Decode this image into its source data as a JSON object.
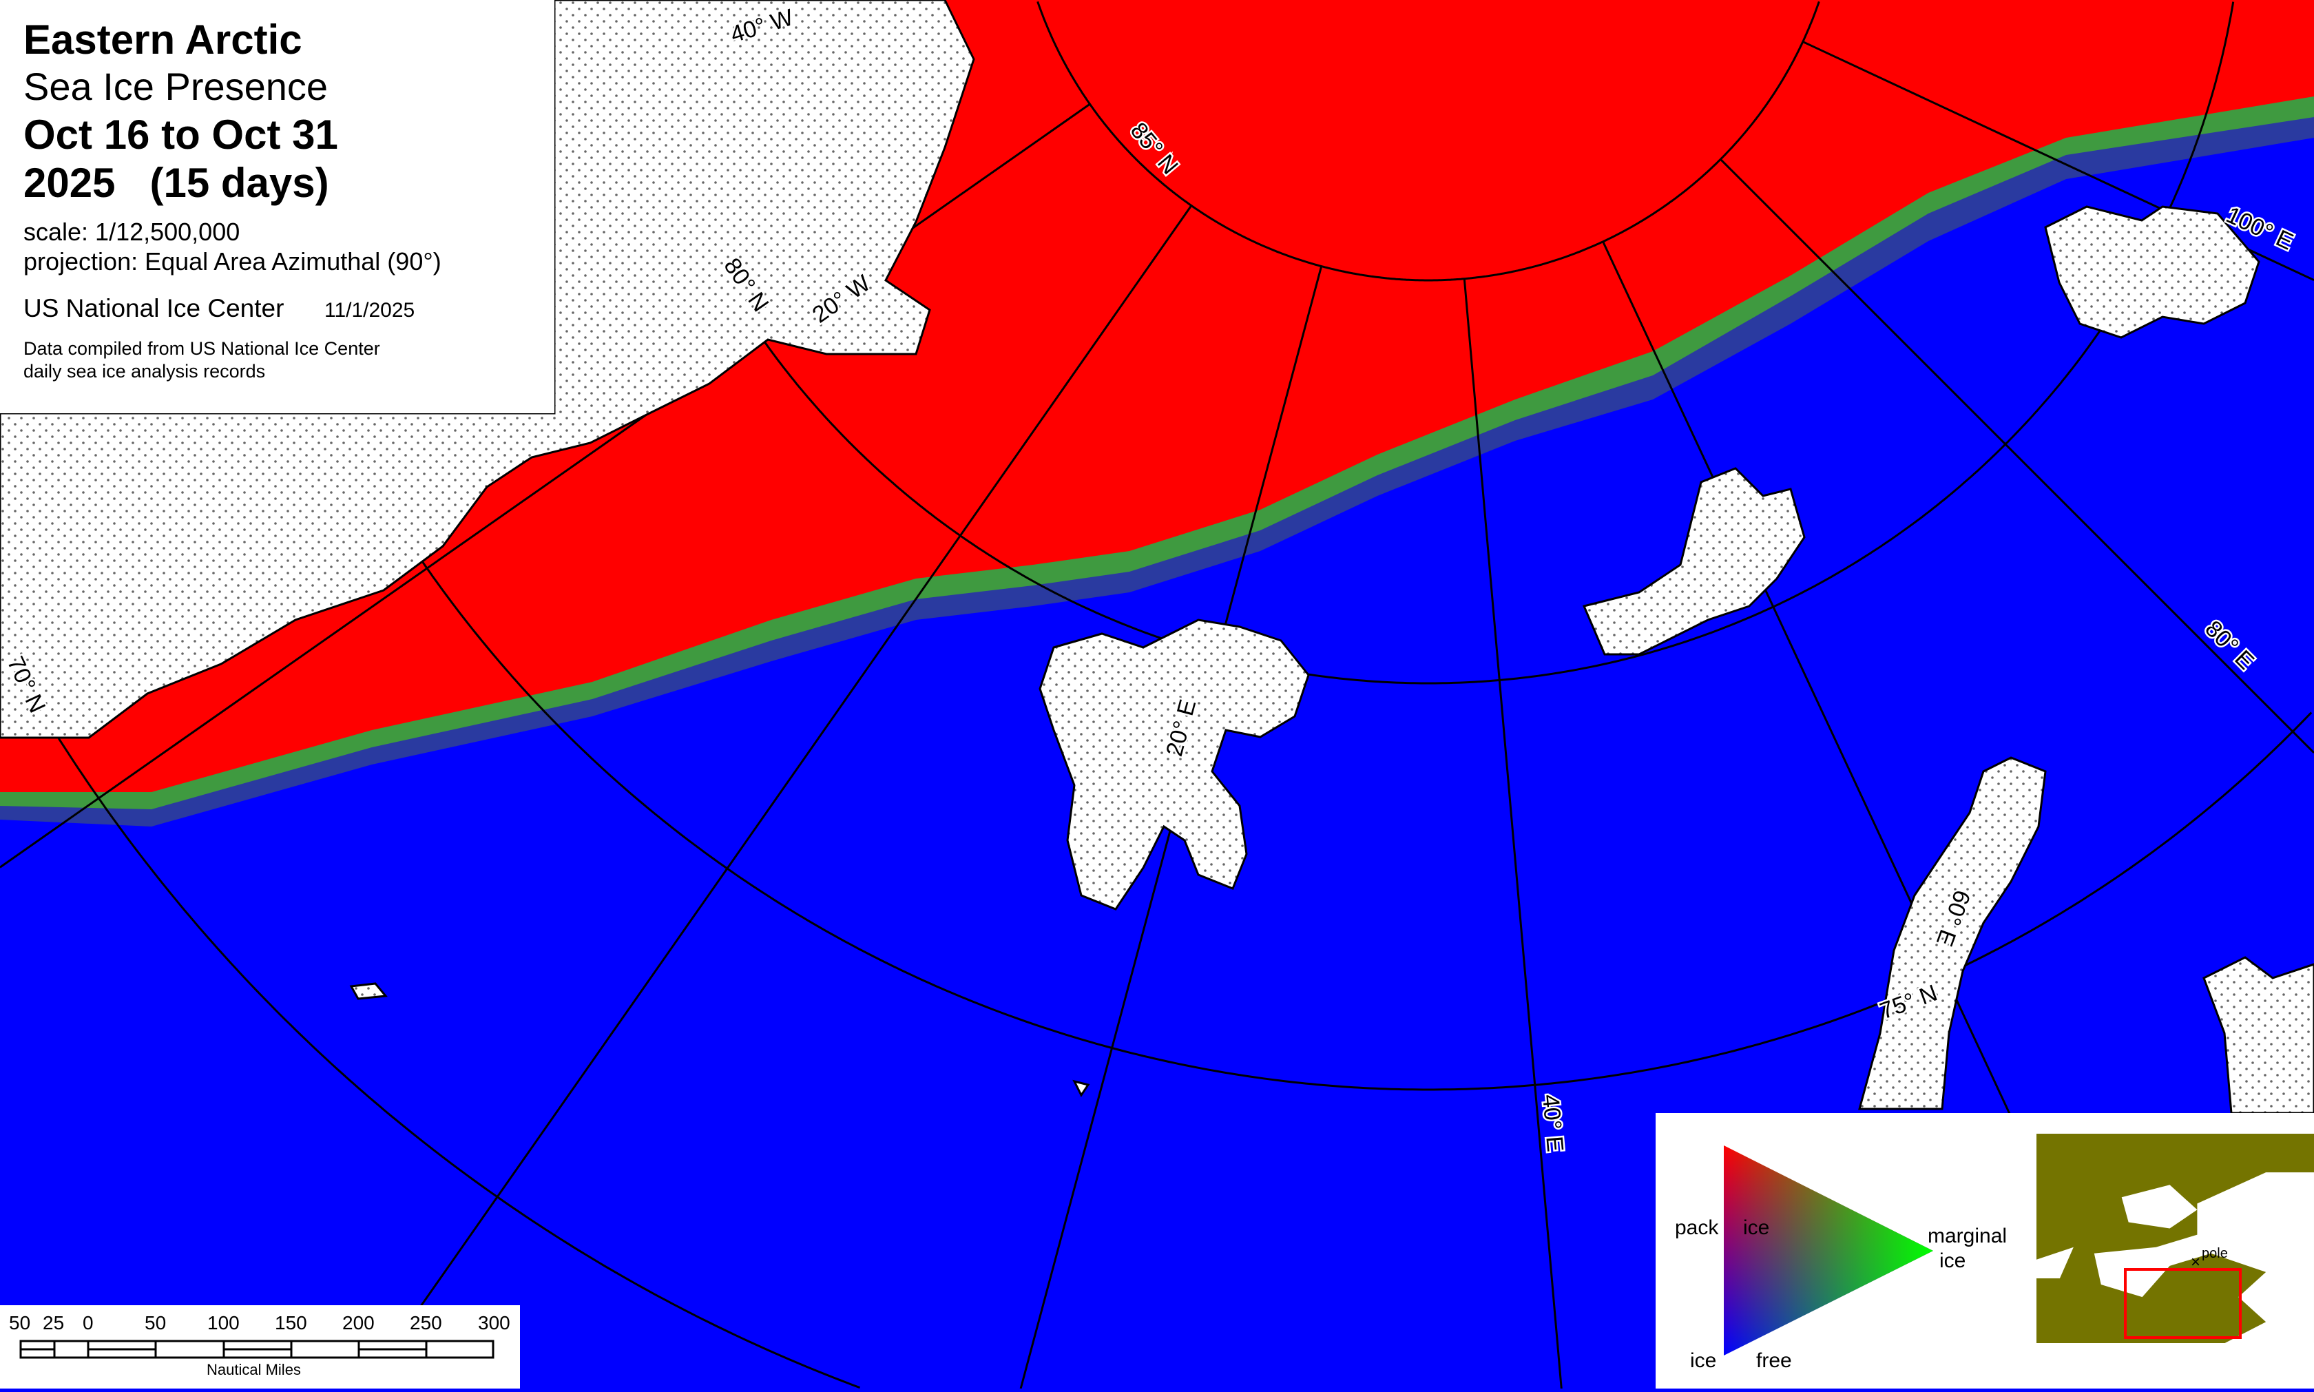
{
  "header": {
    "title": "Eastern Arctic",
    "subtitle": "Sea Ice Presence",
    "period": "Oct 16 to Oct 31",
    "year_days": "2025   (15 days)",
    "scale": "scale: 1/12,500,000",
    "projection": "projection: Equal Area Azimuthal (90°)",
    "agency": "US National Ice Center",
    "date": "11/1/2025",
    "note_line1": "Data compiled from US National Ice Center",
    "note_line2": "daily sea ice analysis records"
  },
  "graticule_labels": {
    "lon_40w": "40° W",
    "lat_85n": "85° N",
    "lat_80n": "80° N",
    "lon_20w": "20° W",
    "lat_70n": "70° N",
    "lon_20e": "20° E",
    "lon_40e": "40° E",
    "lon_60e": "60° E",
    "lat_75n": "75° N",
    "lon_80e": "80° E",
    "lon_100e": "100° E"
  },
  "legend": {
    "pack": "pack",
    "pack_ice": "ice",
    "marginal": "marginal",
    "marginal_ice": "ice",
    "ice": "ice",
    "free": "free",
    "pole": "pole",
    "colors": {
      "pack_ice": "#ff0000",
      "ice_free": "#0000ff",
      "marginal_ice": "#00ff00",
      "land_inset": "#747400",
      "inset_box": "#ff0000"
    }
  },
  "scale_bar": {
    "ticks": [
      "50",
      "25",
      "0",
      "50",
      "100",
      "150",
      "200",
      "250",
      "300"
    ],
    "unit": "Nautical Miles"
  }
}
